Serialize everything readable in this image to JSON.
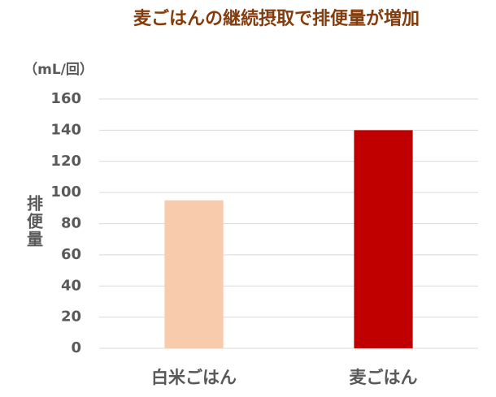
{
  "chart_data": {
    "type": "bar",
    "title": "麦ごはんの継続摂取で排便量が増加",
    "unit_label": "（mL/回）",
    "y_label": "排便量",
    "categories": [
      "白米ごはん",
      "麦ごはん"
    ],
    "values": [
      95,
      140
    ],
    "colors": [
      "#f8cbad",
      "#c00000"
    ],
    "ylim": [
      0,
      160
    ],
    "yticks": [
      0,
      20,
      40,
      60,
      80,
      100,
      120,
      140,
      160
    ],
    "grid": true
  }
}
